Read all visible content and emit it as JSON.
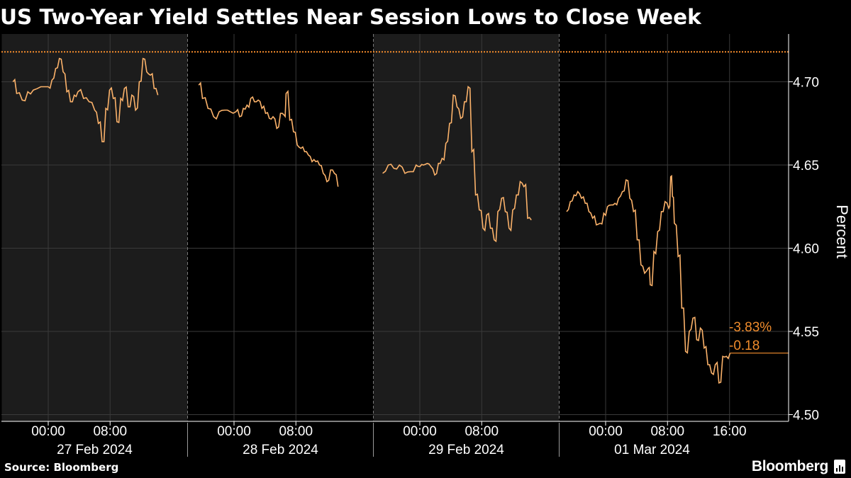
{
  "title": "US Two-Year Yield Settles Near Session Lows to Close Week",
  "source": "Source: Bloomberg",
  "brand": "Bloomberg",
  "logo_icon": "bloomberg-terminal-icon",
  "colors": {
    "background": "#000000",
    "shade": "#1c1c1c",
    "series": "#fbb26a",
    "reference_line": "#f58c2c",
    "annotation": "#f08c2c",
    "text": "#ffffff",
    "grid": "#3a3a3a",
    "divider": "#9a9a9a"
  },
  "chart_data": {
    "type": "line",
    "title": "US Two-Year Yield Settles Near Session Lows to Close Week",
    "ylabel": "Percent",
    "xlabel": "",
    "ylim": [
      4.495,
      4.73
    ],
    "yticks": [
      "4.50",
      "4.55",
      "4.60",
      "4.65",
      "4.70"
    ],
    "ytick_values": [
      4.5,
      4.55,
      4.6,
      4.65,
      4.7
    ],
    "xlim": [
      -0.2,
      3.7
    ],
    "grid": true,
    "legend": "none",
    "reference_line": 4.718,
    "days": [
      {
        "label": "27 Feb 2024",
        "start": -0.25,
        "end": 0.75,
        "shaded": true
      },
      {
        "label": "28 Feb 2024",
        "start": 0.75,
        "end": 1.75,
        "shaded": false
      },
      {
        "label": "29 Feb 2024",
        "start": 1.75,
        "end": 2.75,
        "shaded": true
      },
      {
        "label": "01 Mar 2024",
        "start": 2.75,
        "end": 3.75,
        "shaded": false
      }
    ],
    "xticks": [
      {
        "label": "00:00",
        "x": 0.0
      },
      {
        "label": "08:00",
        "x": 0.333
      },
      {
        "label": "00:00",
        "x": 1.0
      },
      {
        "label": "08:00",
        "x": 1.333
      },
      {
        "label": "00:00",
        "x": 2.0
      },
      {
        "label": "08:00",
        "x": 2.333
      },
      {
        "label": "00:00",
        "x": 3.0
      },
      {
        "label": "08:00",
        "x": 3.333
      },
      {
        "label": "16:00",
        "x": 3.667
      }
    ],
    "annotations": [
      {
        "text": "-3.83%",
        "y": 4.553
      },
      {
        "text": "-0.18",
        "y": 4.542
      }
    ],
    "last_value_y": 4.537,
    "series": [
      {
        "segments": [
          [
            [
              -0.19,
              4.7
            ],
            [
              -0.17,
              4.693
            ],
            [
              -0.14,
              4.689
            ],
            [
              -0.11,
              4.694
            ],
            [
              -0.08,
              4.695
            ],
            [
              -0.04,
              4.697
            ],
            [
              0.0,
              4.697
            ],
            [
              0.02,
              4.701
            ],
            [
              0.04,
              4.708
            ],
            [
              0.06,
              4.714
            ],
            [
              0.08,
              4.706
            ],
            [
              0.1,
              4.694
            ],
            [
              0.12,
              4.688
            ],
            [
              0.14,
              4.692
            ],
            [
              0.16,
              4.694
            ],
            [
              0.19,
              4.69
            ],
            [
              0.22,
              4.688
            ],
            [
              0.25,
              4.683
            ],
            [
              0.27,
              4.675
            ],
            [
              0.29,
              4.664
            ],
            [
              0.31,
              4.684
            ],
            [
              0.33,
              4.695
            ],
            [
              0.35,
              4.69
            ],
            [
              0.37,
              4.676
            ],
            [
              0.39,
              4.69
            ],
            [
              0.41,
              4.696
            ],
            [
              0.43,
              4.685
            ],
            [
              0.45,
              4.692
            ],
            [
              0.47,
              4.683
            ],
            [
              0.49,
              4.7
            ],
            [
              0.51,
              4.714
            ],
            [
              0.53,
              4.706
            ],
            [
              0.55,
              4.704
            ],
            [
              0.57,
              4.696
            ],
            [
              0.59,
              4.692
            ]
          ],
          [
            [
              0.81,
              4.698
            ],
            [
              0.83,
              4.69
            ],
            [
              0.86,
              4.684
            ],
            [
              0.89,
              4.679
            ],
            [
              0.92,
              4.682
            ],
            [
              0.95,
              4.683
            ],
            [
              0.98,
              4.682
            ],
            [
              1.01,
              4.682
            ],
            [
              1.03,
              4.679
            ],
            [
              1.05,
              4.684
            ],
            [
              1.07,
              4.686
            ],
            [
              1.09,
              4.69
            ],
            [
              1.11,
              4.688
            ],
            [
              1.13,
              4.689
            ],
            [
              1.15,
              4.684
            ],
            [
              1.17,
              4.681
            ],
            [
              1.19,
              4.678
            ],
            [
              1.21,
              4.679
            ],
            [
              1.23,
              4.672
            ],
            [
              1.25,
              4.681
            ],
            [
              1.27,
              4.68
            ],
            [
              1.28,
              4.693
            ],
            [
              1.3,
              4.677
            ],
            [
              1.32,
              4.67
            ],
            [
              1.34,
              4.662
            ],
            [
              1.36,
              4.66
            ],
            [
              1.38,
              4.658
            ],
            [
              1.4,
              4.656
            ],
            [
              1.42,
              4.652
            ],
            [
              1.44,
              4.652
            ],
            [
              1.46,
              4.65
            ],
            [
              1.48,
              4.645
            ],
            [
              1.5,
              4.64
            ],
            [
              1.52,
              4.647
            ],
            [
              1.54,
              4.645
            ],
            [
              1.56,
              4.637
            ]
          ],
          [
            [
              1.8,
              4.645
            ],
            [
              1.83,
              4.65
            ],
            [
              1.86,
              4.648
            ],
            [
              1.89,
              4.65
            ],
            [
              1.92,
              4.645
            ],
            [
              1.95,
              4.646
            ],
            [
              1.98,
              4.65
            ],
            [
              2.0,
              4.649
            ],
            [
              2.02,
              4.65
            ],
            [
              2.04,
              4.651
            ],
            [
              2.06,
              4.649
            ],
            [
              2.08,
              4.644
            ],
            [
              2.1,
              4.651
            ],
            [
              2.12,
              4.654
            ],
            [
              2.14,
              4.663
            ],
            [
              2.16,
              4.675
            ],
            [
              2.18,
              4.692
            ],
            [
              2.2,
              4.685
            ],
            [
              2.22,
              4.678
            ],
            [
              2.24,
              4.688
            ],
            [
              2.26,
              4.697
            ],
            [
              2.28,
              4.658
            ],
            [
              2.3,
              4.632
            ],
            [
              2.32,
              4.623
            ],
            [
              2.34,
              4.612
            ],
            [
              2.36,
              4.62
            ],
            [
              2.38,
              4.612
            ],
            [
              2.4,
              4.605
            ],
            [
              2.42,
              4.622
            ],
            [
              2.44,
              4.63
            ],
            [
              2.46,
              4.622
            ],
            [
              2.48,
              4.612
            ],
            [
              2.5,
              4.623
            ],
            [
              2.52,
              4.632
            ],
            [
              2.54,
              4.64
            ],
            [
              2.56,
              4.637
            ],
            [
              2.58,
              4.618
            ],
            [
              2.6,
              4.617
            ]
          ],
          [
            [
              2.79,
              4.622
            ],
            [
              2.81,
              4.628
            ],
            [
              2.83,
              4.632
            ],
            [
              2.85,
              4.634
            ],
            [
              2.87,
              4.63
            ],
            [
              2.89,
              4.627
            ],
            [
              2.91,
              4.622
            ],
            [
              2.93,
              4.618
            ],
            [
              2.95,
              4.614
            ],
            [
              2.97,
              4.615
            ],
            [
              2.99,
              4.621
            ],
            [
              3.01,
              4.625
            ],
            [
              3.03,
              4.626
            ],
            [
              3.05,
              4.627
            ],
            [
              3.07,
              4.63
            ],
            [
              3.09,
              4.634
            ],
            [
              3.11,
              4.641
            ],
            [
              3.13,
              4.63
            ],
            [
              3.15,
              4.622
            ],
            [
              3.17,
              4.605
            ],
            [
              3.19,
              4.59
            ],
            [
              3.21,
              4.585
            ],
            [
              3.23,
              4.588
            ],
            [
              3.24,
              4.578
            ],
            [
              3.26,
              4.598
            ],
            [
              3.28,
              4.61
            ],
            [
              3.3,
              4.622
            ],
            [
              3.32,
              4.628
            ],
            [
              3.34,
              4.624
            ],
            [
              3.35,
              4.643
            ],
            [
              3.36,
              4.631
            ],
            [
              3.37,
              4.615
            ],
            [
              3.39,
              4.595
            ],
            [
              3.41,
              4.564
            ],
            [
              3.43,
              4.538
            ],
            [
              3.45,
              4.55
            ],
            [
              3.47,
              4.558
            ],
            [
              3.49,
              4.545
            ],
            [
              3.51,
              4.552
            ],
            [
              3.53,
              4.54
            ],
            [
              3.55,
              4.53
            ],
            [
              3.57,
              4.525
            ],
            [
              3.59,
              4.53
            ],
            [
              3.61,
              4.519
            ],
            [
              3.63,
              4.535
            ],
            [
              3.65,
              4.535
            ],
            [
              3.67,
              4.537
            ]
          ]
        ]
      }
    ]
  }
}
